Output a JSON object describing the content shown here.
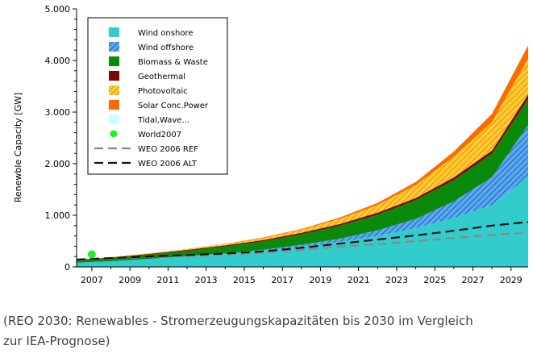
{
  "chart_data": {
    "type": "area",
    "title": "",
    "xlabel": "",
    "ylabel": "Renewble Capacity [GW]",
    "xlim": [
      2006.2,
      2029.9
    ],
    "ylim": [
      0,
      5000
    ],
    "x_ticks": [
      "2007",
      "2009",
      "2011",
      "2013",
      "2015",
      "2017",
      "2019",
      "2021",
      "2023",
      "2025",
      "2027",
      "2029"
    ],
    "y_ticks": [
      "0",
      "1.000",
      "2.000",
      "3.000",
      "4.000",
      "5.000"
    ],
    "grid": false,
    "legend_position": "top-left",
    "x": [
      2006.2,
      2008,
      2010,
      2012,
      2014,
      2016,
      2018,
      2020,
      2022,
      2024,
      2026,
      2028,
      2029.9
    ],
    "stack": [
      {
        "name": "Wind onshore",
        "color": "#33cccc",
        "pattern": "solid",
        "values": [
          80,
          110,
          150,
          200,
          250,
          310,
          390,
          480,
          600,
          750,
          950,
          1200,
          1750
        ]
      },
      {
        "name": "Wind offshore",
        "color": "#3a86d9",
        "pattern": "hatch",
        "values": [
          0,
          0,
          5,
          10,
          15,
          25,
          40,
          65,
          110,
          180,
          320,
          540,
          1000
        ]
      },
      {
        "name": "Biomass & Waste",
        "color": "#0a8a0a",
        "pattern": "solid",
        "values": [
          50,
          60,
          80,
          100,
          130,
          160,
          200,
          250,
          300,
          360,
          410,
          450,
          500
        ]
      },
      {
        "name": "Geothermal",
        "color": "#7a0a0a",
        "pattern": "solid",
        "values": [
          10,
          12,
          15,
          18,
          20,
          25,
          30,
          35,
          40,
          45,
          55,
          65,
          90
        ]
      },
      {
        "name": "Photovoltaic",
        "color": "#ffaa00",
        "pattern": "hatch",
        "values": [
          5,
          8,
          12,
          18,
          25,
          40,
          60,
          100,
          150,
          250,
          400,
          550,
          700
        ]
      },
      {
        "name": "Solar Conc.Power",
        "color": "#ff6a00",
        "pattern": "solid",
        "values": [
          0,
          1,
          2,
          3,
          5,
          10,
          15,
          25,
          40,
          60,
          100,
          160,
          250
        ]
      },
      {
        "name": "Tidal,Wave...",
        "color": "#c8ffff",
        "pattern": "solid",
        "values": [
          0,
          0,
          0,
          0,
          0,
          1,
          2,
          3,
          5,
          8,
          12,
          16,
          20
        ]
      }
    ],
    "lines": [
      {
        "name": "WEO 2006 REF",
        "color": "#888888",
        "dash": "long",
        "values": [
          130,
          160,
          190,
          210,
          240,
          280,
          330,
          390,
          440,
          500,
          560,
          620,
          660
        ]
      },
      {
        "name": "WEO 2006 ALT",
        "color": "#111111",
        "dash": "long",
        "values": [
          140,
          170,
          200,
          230,
          260,
          300,
          370,
          450,
          530,
          610,
          700,
          800,
          870
        ]
      }
    ],
    "points": [
      {
        "name": "World2007",
        "color": "#22ee22",
        "x": 2007,
        "y": 240
      }
    ]
  },
  "caption": {
    "line1": "(REO 2030: Renewables - Stromerzeugungskapazitäten bis 2030 im Vergleich",
    "line2": "zur IEA-Prognose)"
  }
}
